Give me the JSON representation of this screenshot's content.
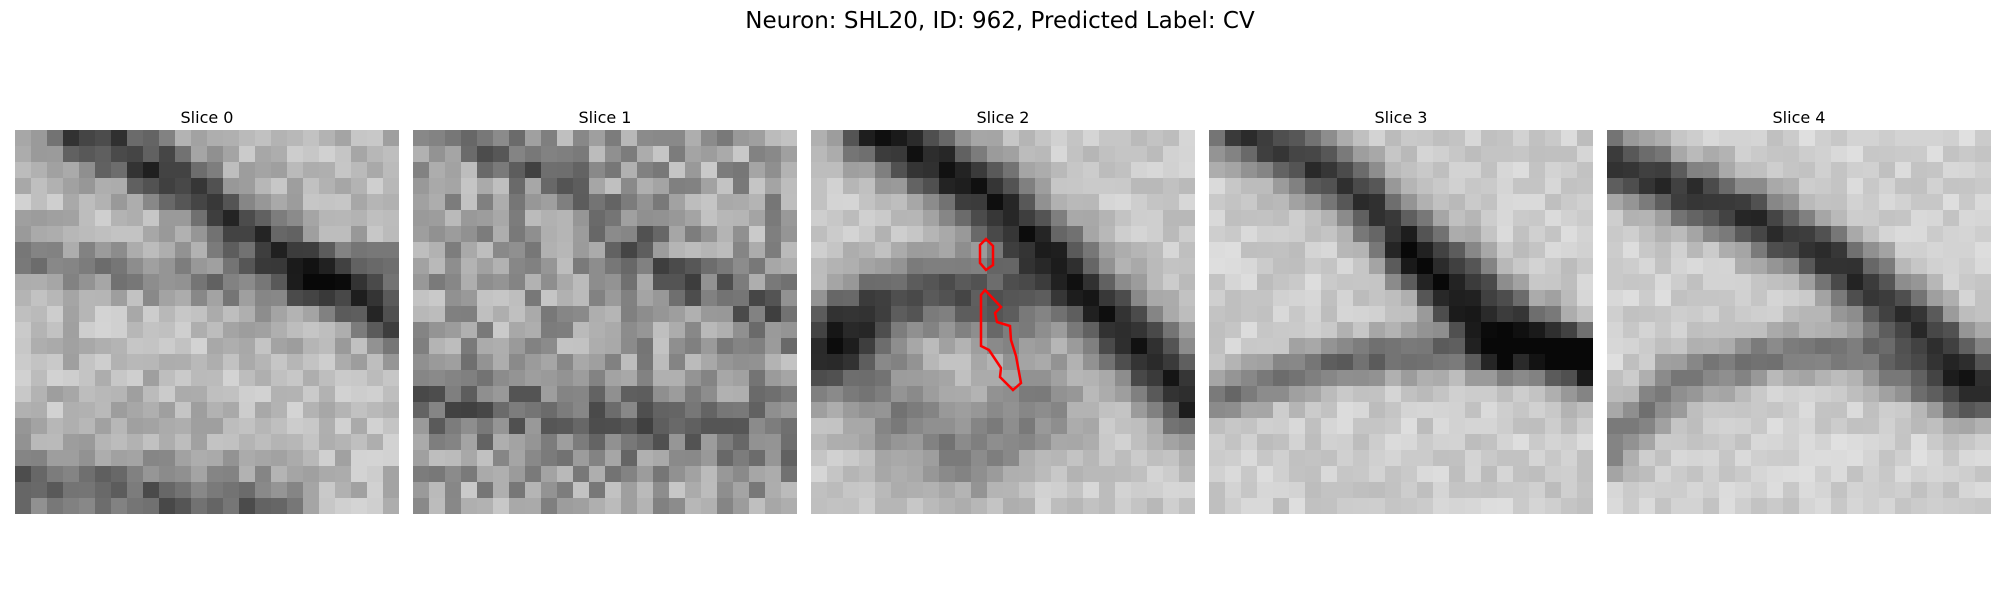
{
  "figure": {
    "title": "Neuron: SHL20, ID: 962, Predicted Label: CV"
  },
  "panels": [
    {
      "title": "Slice 0"
    },
    {
      "title": "Slice 1"
    },
    {
      "title": "Slice 2"
    },
    {
      "title": "Slice 3"
    },
    {
      "title": "Slice 4"
    }
  ],
  "colors": {
    "contour": "#ff0000",
    "background": "#ffffff",
    "colormap": "grayscale"
  }
}
